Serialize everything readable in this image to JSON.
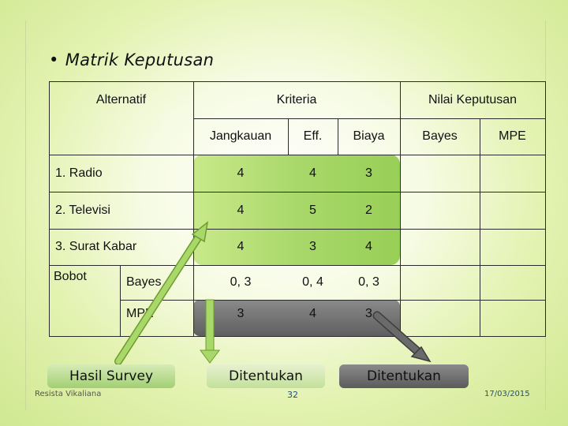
{
  "title": "Matrik Keputusan",
  "bullet": "•",
  "table": {
    "header_alternatif": "Alternatif",
    "header_kriteria": "Kriteria",
    "header_nilai": "Nilai Keputusan",
    "sub_jangkauan": "Jangkauan",
    "sub_eff": "Eff.",
    "sub_biaya": "Biaya",
    "sub_bayes": "Bayes",
    "sub_mpe": "MPE",
    "rows": [
      {
        "label": "1. Radio",
        "jangkauan": "4",
        "eff": "4",
        "biaya": "3"
      },
      {
        "label": "2. Televisi",
        "jangkauan": "4",
        "eff": "5",
        "biaya": "2"
      },
      {
        "label": "3. Surat Kabar",
        "jangkauan": "4",
        "eff": "3",
        "biaya": "4"
      }
    ],
    "bobot_label": "Bobot",
    "bobot_rows": [
      {
        "label": "Bayes",
        "jangkauan": "0, 3",
        "eff": "0, 4",
        "biaya": "0, 3"
      },
      {
        "label": "MPE",
        "jangkauan": "3",
        "eff": "4",
        "biaya": "3"
      }
    ]
  },
  "labels": {
    "hasil_survey": "Hasil Survey",
    "ditentukan_1": "Ditentukan",
    "ditentukan_2": "Ditentukan"
  },
  "footer": {
    "author": "Resista Vikaliana",
    "page": "32",
    "date": "17/03/2015"
  },
  "colors": {
    "green_arrow": "#8cc63f",
    "gray_arrow": "#555555",
    "green_fill": "#a9d86a",
    "gray_fill": "#6a6a6a"
  }
}
